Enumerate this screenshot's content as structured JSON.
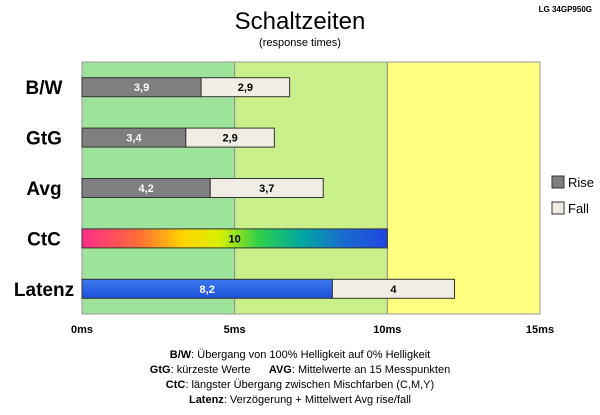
{
  "header": {
    "title": "Schaltzeiten",
    "subtitle": "(response times)",
    "model": "LG 34GP950G"
  },
  "chart_data": {
    "type": "bar",
    "orientation": "horizontal",
    "stacked": true,
    "categories": [
      "B/W",
      "GtG",
      "Avg",
      "CtC",
      "Latenz"
    ],
    "series": [
      {
        "name": "Rise",
        "color": "#7f7f7f",
        "values": [
          3.9,
          3.4,
          4.2,
          null,
          8.2
        ]
      },
      {
        "name": "Fall",
        "color": "#f0eee4",
        "values": [
          2.9,
          2.9,
          3.7,
          null,
          4
        ]
      }
    ],
    "ctc_value": 10,
    "xlim": [
      0,
      15
    ],
    "x_ticks": [
      "0ms",
      "5ms",
      "10ms",
      "15ms"
    ],
    "background_zones": [
      {
        "from": 0,
        "to": 5,
        "color": "#9ee39b"
      },
      {
        "from": 5,
        "to": 10,
        "color": "#c9f08a"
      },
      {
        "from": 10,
        "to": 15,
        "color": "#ffff80"
      }
    ],
    "legend_position": "right",
    "grid": true
  },
  "footnotes": {
    "line1": {
      "bold": "B/W",
      "text": ":  Übergang von 100% Helligkeit auf 0% Helligkeit"
    },
    "line2a": {
      "bold": "GtG",
      "text": ": kürzeste  Werte"
    },
    "line2b": {
      "bold": "AVG",
      "text": ": Mittelwerte  an 15 Messpunkten"
    },
    "line3": {
      "bold": "CtC",
      "text": ": längster Übergang  zwischen Mischfarben (C,M,Y)"
    },
    "line4": {
      "bold": "Latenz",
      "text": ": Verzögerung  + Mittelwert Avg rise/fall"
    }
  }
}
